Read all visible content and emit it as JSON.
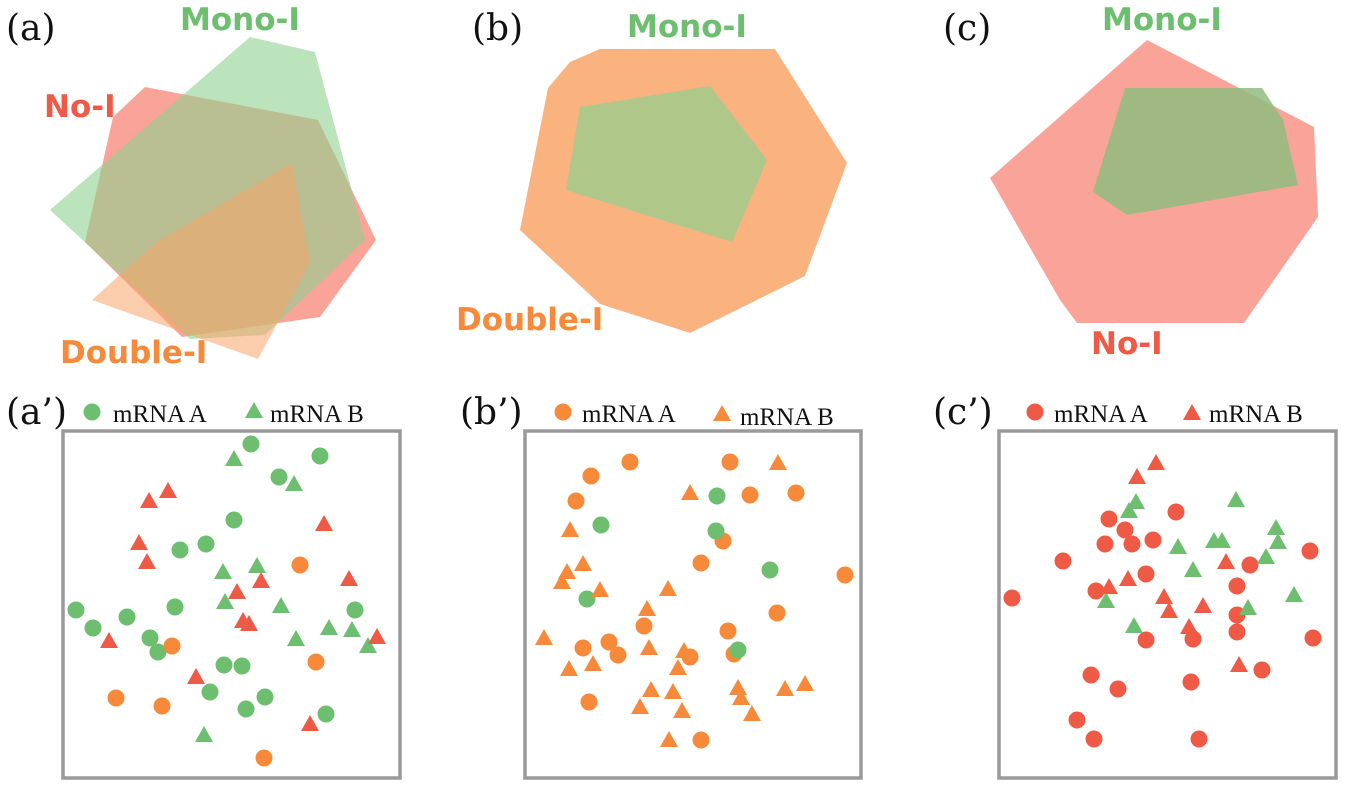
{
  "colors": {
    "no_i": "#ee5a46",
    "mono_i": "#6dbf6f",
    "double_i": "#f78a3a",
    "no_i_fill": "#f98c7e",
    "mono_i_fill": "#8ed18f",
    "double_i_fill": "#f9a468",
    "frame": "#9a9a9a"
  },
  "panels": {
    "a": {
      "label": "(a)",
      "mono": "Mono-I",
      "no": "No-I",
      "double": "Double-I"
    },
    "b": {
      "label": "(b)",
      "mono": "Mono-I",
      "double": "Double-I"
    },
    "c": {
      "label": "(c)",
      "mono": "Mono-I",
      "no": "No-I"
    },
    "a2": {
      "label": "(a’)",
      "legend_a": "mRNA A",
      "legend_b": "mRNA B",
      "legend_color": "mono_i"
    },
    "b2": {
      "label": "(b’)",
      "legend_a": "mRNA A",
      "legend_b": "mRNA B",
      "legend_color": "double_i"
    },
    "c2": {
      "label": "(c’)",
      "legend_a": "mRNA A",
      "legend_b": "mRNA B",
      "legend_color": "no_i"
    }
  }
}
